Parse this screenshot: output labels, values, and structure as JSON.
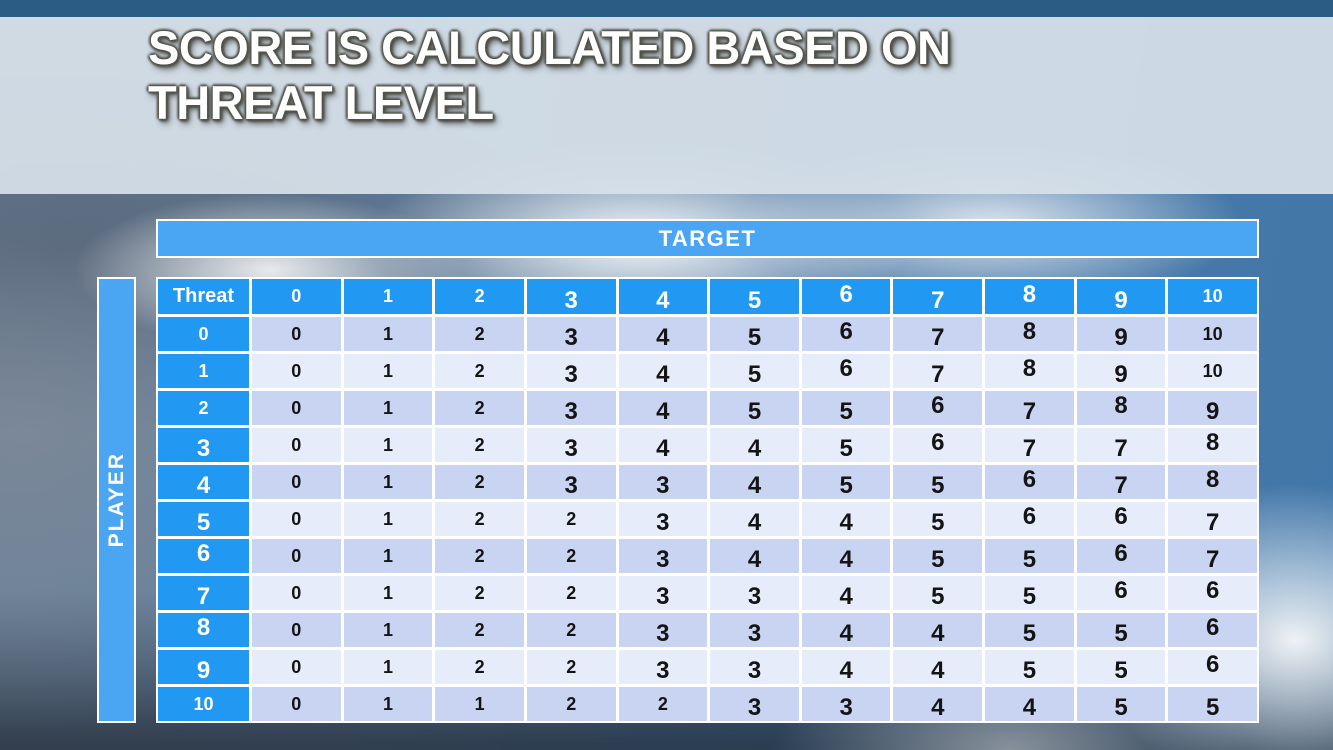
{
  "title": {
    "line1": "SCORE IS CALCULATED BASED ON",
    "line2": "THREAT LEVEL"
  },
  "table": {
    "target_label": "TARGET",
    "player_label": "PLAYER",
    "corner_label": "Threat",
    "column_headers": [
      "0",
      "1",
      "2",
      "3",
      "4",
      "5",
      "6",
      "7",
      "8",
      "9",
      "10"
    ],
    "rows": [
      {
        "label": "0",
        "values": [
          "0",
          "1",
          "2",
          "3",
          "4",
          "5",
          "6",
          "7",
          "8",
          "9",
          "10"
        ]
      },
      {
        "label": "1",
        "values": [
          "0",
          "1",
          "2",
          "3",
          "4",
          "5",
          "6",
          "7",
          "8",
          "9",
          "10"
        ]
      },
      {
        "label": "2",
        "values": [
          "0",
          "1",
          "2",
          "3",
          "4",
          "5",
          "5",
          "6",
          "7",
          "8",
          "9"
        ]
      },
      {
        "label": "3",
        "values": [
          "0",
          "1",
          "2",
          "3",
          "4",
          "4",
          "5",
          "6",
          "7",
          "7",
          "8"
        ]
      },
      {
        "label": "4",
        "values": [
          "0",
          "1",
          "2",
          "3",
          "3",
          "4",
          "5",
          "5",
          "6",
          "7",
          "8"
        ]
      },
      {
        "label": "5",
        "values": [
          "0",
          "1",
          "2",
          "2",
          "3",
          "4",
          "4",
          "5",
          "6",
          "6",
          "7"
        ]
      },
      {
        "label": "6",
        "values": [
          "0",
          "1",
          "2",
          "2",
          "3",
          "4",
          "4",
          "5",
          "5",
          "6",
          "7"
        ]
      },
      {
        "label": "7",
        "values": [
          "0",
          "1",
          "2",
          "2",
          "3",
          "3",
          "4",
          "5",
          "5",
          "6",
          "6"
        ]
      },
      {
        "label": "8",
        "values": [
          "0",
          "1",
          "2",
          "2",
          "3",
          "3",
          "4",
          "4",
          "5",
          "5",
          "6"
        ]
      },
      {
        "label": "9",
        "values": [
          "0",
          "1",
          "2",
          "2",
          "3",
          "3",
          "4",
          "4",
          "5",
          "5",
          "6"
        ]
      },
      {
        "label": "10",
        "values": [
          "0",
          "1",
          "1",
          "2",
          "2",
          "3",
          "3",
          "4",
          "4",
          "5",
          "5"
        ]
      }
    ]
  },
  "colors": {
    "top_bar": "#2b5c83",
    "title_band": "#d6e0e8",
    "banner_blue": "#4aa6f2",
    "header_blue": "#2199f2",
    "row_even": "#c8d4f1",
    "row_odd": "#e7ecfa",
    "separator": "#ffffff",
    "cell_text": "#141414",
    "title_text": "#ffffff"
  }
}
